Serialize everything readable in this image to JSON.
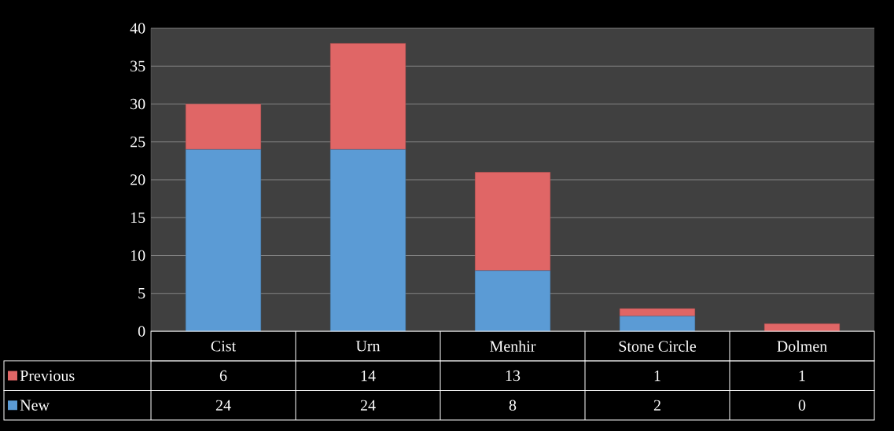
{
  "chart_data": {
    "type": "bar",
    "stacked": true,
    "categories": [
      "Cist",
      "Urn",
      "Menhir",
      "Stone Circle",
      "Dolmen"
    ],
    "series": [
      {
        "name": "New",
        "color": "#5b9bd5",
        "values": [
          24,
          24,
          8,
          2,
          0
        ]
      },
      {
        "name": "Previous",
        "color": "#e06666",
        "values": [
          6,
          14,
          13,
          1,
          1
        ]
      }
    ],
    "ylim": [
      0,
      40
    ],
    "yticks": [
      0,
      5,
      10,
      15,
      20,
      25,
      30,
      35,
      40
    ],
    "grid": "y",
    "legend": "bottom left",
    "data_labels": true
  }
}
